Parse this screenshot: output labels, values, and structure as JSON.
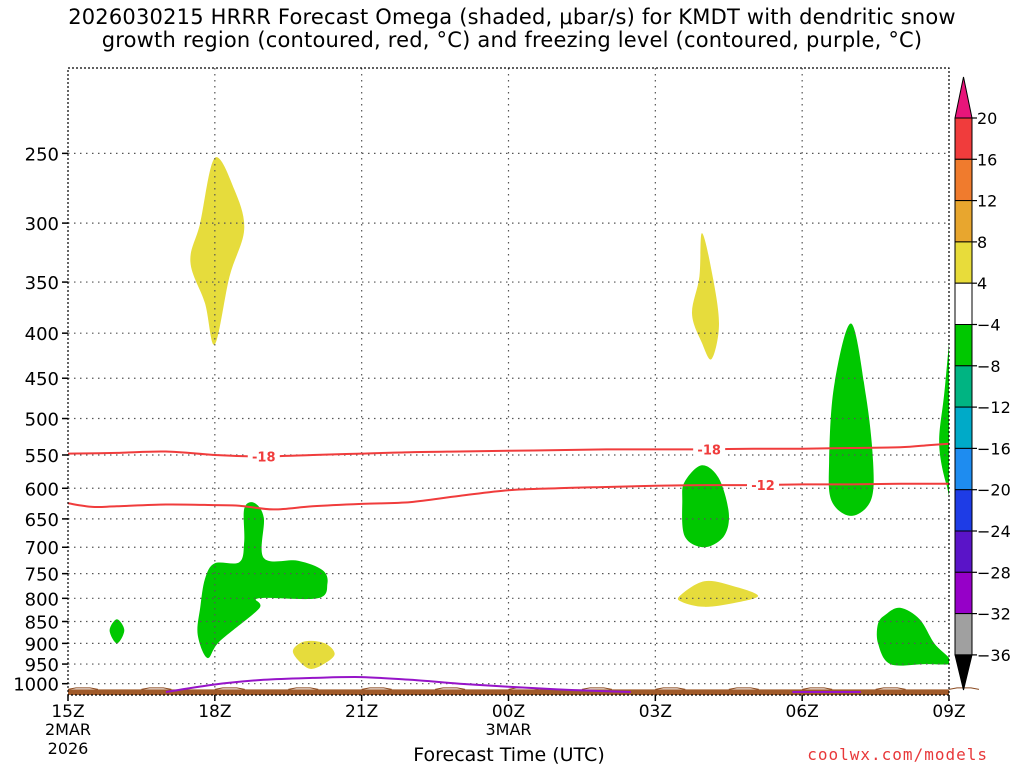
{
  "title_lines": [
    "2026030215 HRRR Forecast Omega (shaded, μbar/s) for KMDT with dendritic snow",
    "growth region (contoured, red, °C) and freezing level (contoured, purple, °C)"
  ],
  "credit": "coolwx.com/models",
  "chart_data": {
    "type": "time-height cross section (filled contours + line contours)",
    "title": "2026030215 HRRR Forecast Omega (shaded, μbar/s) for KMDT with dendritic snow growth region (contoured, red, °C) and freezing level (contoured, purple, °C)",
    "xlabel": "Forecast Time (UTC)",
    "ylabel": "",
    "x_range_hours": [
      0,
      18
    ],
    "y_range_hpa": [
      200,
      1030
    ],
    "y_scale": "log-pressure",
    "x_ticks": [
      {
        "h": 0,
        "label": "15Z",
        "sub": [
          "2MAR",
          "2026"
        ]
      },
      {
        "h": 3,
        "label": "18Z",
        "sub": []
      },
      {
        "h": 6,
        "label": "21Z",
        "sub": []
      },
      {
        "h": 9,
        "label": "00Z",
        "sub": [
          "3MAR"
        ]
      },
      {
        "h": 12,
        "label": "03Z",
        "sub": []
      },
      {
        "h": 15,
        "label": "06Z",
        "sub": []
      },
      {
        "h": 18,
        "label": "09Z",
        "sub": []
      }
    ],
    "y_ticks": [
      250,
      300,
      350,
      400,
      450,
      500,
      550,
      600,
      650,
      700,
      750,
      800,
      850,
      900,
      950,
      1000
    ],
    "grid": true,
    "colorbar": {
      "labels": [
        20,
        16,
        12,
        8,
        4,
        -4,
        -8,
        -12,
        -16,
        -20,
        -24,
        -28,
        -32,
        -36
      ],
      "colors": [
        "#e8157a",
        "#f03c3c",
        "#f07b2d",
        "#e8a62e",
        "#e8dc3a",
        "#ffffff",
        "#00c800",
        "#00b482",
        "#00aac8",
        "#1e8cf0",
        "#1e3ce6",
        "#5a14c8",
        "#9600c8",
        "#a0a0a0",
        "#000000"
      ]
    },
    "shaded_regions": [
      {
        "category": "4 to 8 μbar/s (sinking)",
        "color": "#e6dc3c",
        "points": [
          [
            3.0,
            253
          ],
          [
            3.4,
            275
          ],
          [
            3.6,
            305
          ],
          [
            3.3,
            345
          ],
          [
            3.0,
            412
          ],
          [
            2.8,
            370
          ],
          [
            2.5,
            332
          ],
          [
            2.7,
            300
          ]
        ]
      },
      {
        "category": "4 to 8 μbar/s (sinking)",
        "color": "#e6dc3c",
        "points": [
          [
            12.95,
            308
          ],
          [
            13.15,
            340
          ],
          [
            13.3,
            390
          ],
          [
            13.15,
            428
          ],
          [
            12.95,
            410
          ],
          [
            12.75,
            380
          ],
          [
            12.9,
            345
          ]
        ]
      },
      {
        "category": "4 to 8 μbar/s (sinking)",
        "color": "#e6dc3c",
        "points": [
          [
            12.5,
            795
          ],
          [
            13.0,
            765
          ],
          [
            13.6,
            775
          ],
          [
            14.1,
            795
          ],
          [
            13.6,
            810
          ],
          [
            13.0,
            818
          ],
          [
            12.55,
            808
          ]
        ]
      },
      {
        "category": "4 to 8 μbar/s (sinking)",
        "color": "#e6dc3c",
        "points": [
          [
            4.6,
            915
          ],
          [
            4.85,
            895
          ],
          [
            5.25,
            900
          ],
          [
            5.45,
            925
          ],
          [
            5.25,
            948
          ],
          [
            4.95,
            962
          ],
          [
            4.7,
            940
          ]
        ]
      },
      {
        "category": "-4 to -8 μbar/s (rising)",
        "color": "#00c800",
        "points": [
          [
            3.6,
            633
          ],
          [
            3.8,
            623
          ],
          [
            4.0,
            648
          ],
          [
            4.0,
            720
          ],
          [
            4.7,
            725
          ],
          [
            5.2,
            743
          ],
          [
            5.3,
            770
          ],
          [
            5.1,
            800
          ],
          [
            3.9,
            800
          ],
          [
            3.9,
            822
          ],
          [
            3.1,
            895
          ],
          [
            2.85,
            935
          ],
          [
            2.65,
            880
          ],
          [
            2.7,
            820
          ],
          [
            2.8,
            760
          ],
          [
            3.0,
            730
          ],
          [
            3.5,
            728
          ],
          [
            3.6,
            690
          ]
        ]
      },
      {
        "category": "-4 to -8 μbar/s (rising)",
        "color": "#00c800",
        "points": [
          [
            1.0,
            845
          ],
          [
            1.15,
            870
          ],
          [
            1.0,
            900
          ],
          [
            0.85,
            870
          ]
        ]
      },
      {
        "category": "-4 to -8 μbar/s (rising)",
        "color": "#00c800",
        "points": [
          [
            12.6,
            590
          ],
          [
            12.95,
            565
          ],
          [
            13.3,
            585
          ],
          [
            13.5,
            640
          ],
          [
            13.4,
            680
          ],
          [
            13.0,
            700
          ],
          [
            12.6,
            680
          ],
          [
            12.55,
            620
          ]
        ]
      },
      {
        "category": "-4 to -8 μbar/s (rising)",
        "color": "#00c800",
        "points": [
          [
            15.65,
            460
          ],
          [
            16.0,
            390
          ],
          [
            16.3,
            470
          ],
          [
            16.45,
            560
          ],
          [
            16.4,
            620
          ],
          [
            16.0,
            645
          ],
          [
            15.6,
            620
          ],
          [
            15.55,
            560
          ]
        ]
      },
      {
        "category": "-4 to -8 μbar/s (rising)",
        "color": "#00c800",
        "points": [
          [
            17.9,
            470
          ],
          [
            18.1,
            380
          ],
          [
            18.1,
            610
          ],
          [
            17.95,
            595
          ],
          [
            17.8,
            535
          ]
        ]
      },
      {
        "category": "-4 to -8 μbar/s (rising)",
        "color": "#00c800",
        "points": [
          [
            16.55,
            855
          ],
          [
            16.7,
            835
          ],
          [
            17.0,
            820
          ],
          [
            17.4,
            845
          ],
          [
            17.7,
            900
          ],
          [
            18.0,
            935
          ],
          [
            18.0,
            950
          ],
          [
            17.5,
            950
          ],
          [
            16.8,
            950
          ],
          [
            16.55,
            900
          ]
        ]
      }
    ],
    "contours": [
      {
        "name": "dendritic snow growth region",
        "value": -18,
        "label": "-18",
        "color": "#f03c3c",
        "points": [
          [
            0,
            548
          ],
          [
            1,
            547
          ],
          [
            2,
            545
          ],
          [
            3,
            550
          ],
          [
            3.9,
            552
          ],
          [
            5,
            550
          ],
          [
            6,
            548
          ],
          [
            7,
            546
          ],
          [
            8,
            545
          ],
          [
            9,
            544
          ],
          [
            10,
            543
          ],
          [
            11,
            542
          ],
          [
            12,
            542
          ],
          [
            13,
            542
          ],
          [
            14,
            541
          ],
          [
            15,
            541
          ],
          [
            16,
            540
          ],
          [
            17,
            539
          ],
          [
            17.6,
            536
          ],
          [
            18,
            534
          ]
        ],
        "labels_at_hours": [
          4.0,
          13.1
        ]
      },
      {
        "name": "dendritic snow growth region",
        "value": -12,
        "label": "-12",
        "color": "#f03c3c",
        "points": [
          [
            0,
            624
          ],
          [
            0.5,
            630
          ],
          [
            1,
            629
          ],
          [
            2,
            626
          ],
          [
            3,
            627
          ],
          [
            3.5,
            628
          ],
          [
            4.2,
            634
          ],
          [
            5,
            629
          ],
          [
            6,
            625
          ],
          [
            7,
            622
          ],
          [
            8,
            612
          ],
          [
            9,
            603
          ],
          [
            10,
            600
          ],
          [
            11,
            598
          ],
          [
            12,
            596
          ],
          [
            13,
            595
          ],
          [
            14,
            595
          ],
          [
            15,
            594
          ],
          [
            16,
            594
          ],
          [
            17,
            593
          ],
          [
            18,
            593
          ]
        ],
        "labels_at_hours": [
          14.2
        ]
      },
      {
        "name": "freezing level",
        "value": 0,
        "label": "",
        "color": "#9614c8",
        "points": [
          [
            2.0,
            1022
          ],
          [
            3,
            1002
          ],
          [
            4,
            990
          ],
          [
            5,
            985
          ],
          [
            6,
            983
          ],
          [
            7,
            990
          ],
          [
            8,
            1000
          ],
          [
            9,
            1008
          ],
          [
            10,
            1015
          ],
          [
            11,
            1020
          ],
          [
            11.5,
            1022
          ]
        ]
      },
      {
        "name": "freezing level",
        "value": 0,
        "label": "",
        "color": "#9614c8",
        "points": [
          [
            14.8,
            1022
          ],
          [
            15.5,
            1022
          ],
          [
            16.2,
            1022
          ]
        ]
      }
    ],
    "terrain": {
      "color": "#a05a2a",
      "top_hpa": 1015
    }
  }
}
